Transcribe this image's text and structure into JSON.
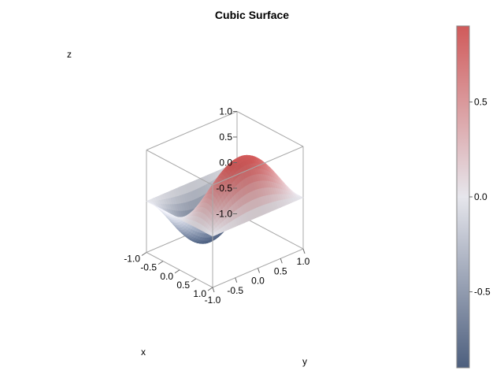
{
  "chart_data": {
    "type": "surface",
    "title": "Cubic Surface",
    "xlabel": "x",
    "ylabel": "y",
    "zlabel": "z",
    "function": "z = sin(pi*x) * cos(pi*y/2)",
    "x_range": [
      -1.0,
      1.0
    ],
    "y_range": [
      -1.0,
      1.0
    ],
    "z_range": [
      -1.0,
      1.0
    ],
    "x_ticks": [
      "-1.0",
      "-0.5",
      "0.0",
      "0.5",
      "1.0"
    ],
    "y_ticks": [
      "-1.0",
      "-0.5",
      "0.0",
      "0.5",
      "1.0"
    ],
    "z_ticks": [
      "-1.0",
      "-0.5",
      "0.0",
      "0.5",
      "1.0"
    ],
    "colorbar": {
      "range": [
        -0.9,
        0.9
      ],
      "ticks": [
        "-0.5",
        "0.0",
        "0.5"
      ],
      "tick_values": [
        -0.5,
        0.0,
        0.5
      ],
      "colors": {
        "low": "#4d5f7e",
        "mid": "#e6e6ec",
        "high": "#d05a5a"
      }
    },
    "grid": false
  }
}
